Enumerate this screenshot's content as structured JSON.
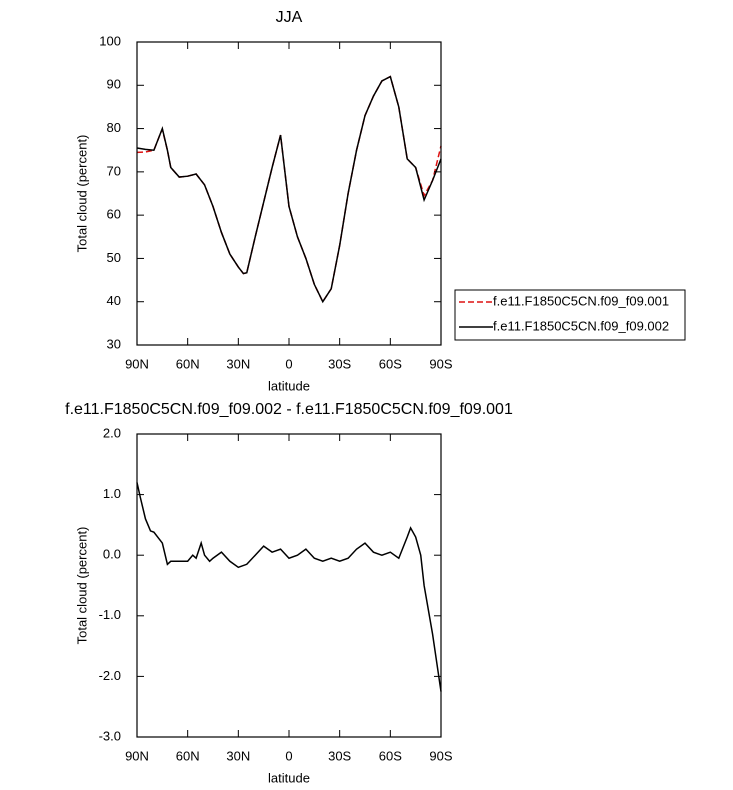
{
  "chart_data": [
    {
      "type": "line",
      "title": "JJA",
      "xlabel": "latitude",
      "ylabel": "Total cloud (percent)",
      "x": [
        90,
        85,
        80,
        76,
        75,
        72,
        70,
        65,
        60,
        55,
        50,
        45,
        40,
        35,
        30,
        27,
        25,
        20,
        15,
        10,
        5,
        0,
        -5,
        -10,
        -15,
        -20,
        -25,
        -30,
        -35,
        -40,
        -45,
        -50,
        -55,
        -60,
        -65,
        -70,
        -75,
        -80,
        -85,
        -90
      ],
      "xlim": [
        90,
        -90
      ],
      "xticks": [
        {
          "value": 90,
          "label": "90N"
        },
        {
          "value": 60,
          "label": "60N"
        },
        {
          "value": 30,
          "label": "30N"
        },
        0,
        {
          "value": -30,
          "label": "30S"
        },
        {
          "value": -60,
          "label": "60S"
        },
        {
          "value": -90,
          "label": "90S"
        }
      ],
      "ylim": [
        30,
        100
      ],
      "yticks": [
        30,
        40,
        50,
        60,
        70,
        80,
        90,
        100
      ],
      "legend": "outside right",
      "series": [
        {
          "name": "f.e11.F1850C5CN.f09_f09.001",
          "color": "#dd1111",
          "dash": true,
          "values": [
            74.5,
            74.6,
            75,
            79,
            79.8,
            75,
            71,
            68.8,
            69,
            69.5,
            67,
            62,
            56,
            51,
            48,
            46.5,
            46.7,
            55,
            63,
            71,
            78.5,
            62,
            55,
            50,
            44,
            40,
            43,
            53,
            65,
            75,
            83,
            87.5,
            91,
            92,
            85,
            73,
            71,
            64.5,
            68,
            76
          ]
        },
        {
          "name": "f.e11.F1850C5CN.f09_f09.002",
          "color": "#000000",
          "dash": false,
          "values": [
            75.5,
            75.2,
            75,
            79,
            80,
            75,
            71,
            68.8,
            69,
            69.5,
            67,
            62,
            56,
            51,
            48,
            46.5,
            46.7,
            55,
            63,
            71,
            78.5,
            62,
            55,
            50,
            44,
            40,
            43,
            53,
            65,
            75,
            83,
            87.5,
            91,
            92,
            85,
            73,
            71,
            63.5,
            68,
            73
          ]
        }
      ]
    },
    {
      "type": "line",
      "title": "f.e11.F1850C5CN.f09_f09.002 - f.e11.F1850C5CN.f09_f09.001",
      "xlabel": "latitude",
      "ylabel": "Total cloud (percent)",
      "x": [
        90,
        88,
        85,
        82,
        80,
        75,
        72,
        70,
        65,
        60,
        57,
        55,
        52,
        50,
        47,
        45,
        40,
        35,
        30,
        25,
        20,
        15,
        10,
        5,
        0,
        -5,
        -10,
        -15,
        -20,
        -25,
        -30,
        -35,
        -40,
        -45,
        -50,
        -55,
        -60,
        -65,
        -70,
        -72,
        -75,
        -78,
        -80,
        -85,
        -90
      ],
      "xlim": [
        90,
        -90
      ],
      "xticks": [
        {
          "value": 90,
          "label": "90N"
        },
        {
          "value": 60,
          "label": "60N"
        },
        {
          "value": 30,
          "label": "30N"
        },
        0,
        {
          "value": -30,
          "label": "30S"
        },
        {
          "value": -60,
          "label": "60S"
        },
        {
          "value": -90,
          "label": "90S"
        }
      ],
      "ylim": [
        -3,
        2
      ],
      "yticks": [
        {
          "value": -3,
          "label": "-3.0"
        },
        {
          "value": -2,
          "label": "-2.0"
        },
        {
          "value": -1,
          "label": "-1.0"
        },
        {
          "value": 0,
          "label": "0.0"
        },
        {
          "value": 1,
          "label": "1.0"
        },
        {
          "value": 2,
          "label": "2.0"
        }
      ],
      "color": "#000000",
      "values": [
        1.2,
        0.95,
        0.6,
        0.4,
        0.38,
        0.2,
        -0.15,
        -0.1,
        -0.1,
        -0.1,
        0.0,
        -0.05,
        0.2,
        0.0,
        -0.1,
        -0.05,
        0.05,
        -0.1,
        -0.2,
        -0.15,
        0.0,
        0.15,
        0.05,
        0.1,
        -0.05,
        0.0,
        0.1,
        -0.05,
        -0.1,
        -0.05,
        -0.1,
        -0.05,
        0.1,
        0.2,
        0.05,
        0.0,
        0.05,
        -0.05,
        0.3,
        0.45,
        0.3,
        0.0,
        -0.5,
        -1.3,
        -2.25
      ]
    }
  ]
}
